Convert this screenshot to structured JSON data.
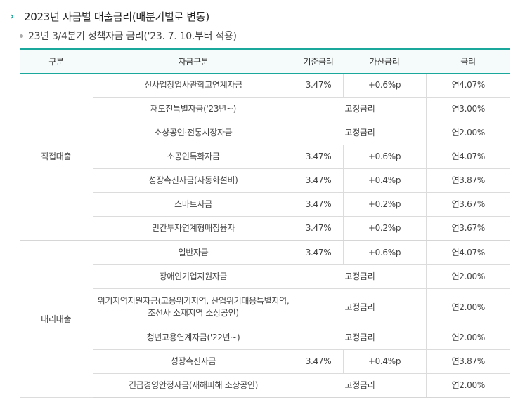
{
  "header": {
    "title": "2023년 자금별 대출금리(매분기별로 변동)",
    "subtitle": "23년 3/4분기 정책자금 금리('23. 7. 10.부터 적용)"
  },
  "colors": {
    "accent": "#1aa89c"
  },
  "table": {
    "columns": [
      "구분",
      "자금구분",
      "기준금리",
      "가산금리",
      "금리"
    ],
    "groups": [
      {
        "label": "직접대출",
        "rows": [
          {
            "fund": "신사업창업사관학교연계자금",
            "base": "3.47%",
            "add": "+0.6%p",
            "rate": "연4.07%"
          },
          {
            "fund": "재도전특별자금('23년~)",
            "fixed": "고정금리",
            "rate": "연3.00%"
          },
          {
            "fund": "소상공인·전통시장자금",
            "fixed": "고정금리",
            "rate": "연2.00%"
          },
          {
            "fund": "소공인특화자금",
            "base": "3.47%",
            "add": "+0.6%p",
            "rate": "연4.07%"
          },
          {
            "fund": "성장촉진자금(자동화설비)",
            "base": "3.47%",
            "add": "+0.4%p",
            "rate": "연3.87%"
          },
          {
            "fund": "스마트자금",
            "base": "3.47%",
            "add": "+0.2%p",
            "rate": "연3.67%"
          },
          {
            "fund": "민간투자연계형매칭융자",
            "base": "3.47%",
            "add": "+0.2%p",
            "rate": "연3.67%"
          }
        ]
      },
      {
        "label": "대리대출",
        "rows": [
          {
            "fund": "일반자금",
            "base": "3.47%",
            "add": "+0.6%p",
            "rate": "연4.07%"
          },
          {
            "fund": "장애인기업지원자금",
            "fixed": "고정금리",
            "rate": "연2.00%"
          },
          {
            "fund": "위기지역지원자금(고용위기지역, 산업위기대응특별지역, 조선사 소재지역 소상공인)",
            "fixed": "고정금리",
            "rate": "연2.00%"
          },
          {
            "fund": "청년고용연계자금('22년~)",
            "fixed": "고정금리",
            "rate": "연2.00%"
          },
          {
            "fund": "성장촉진자금",
            "base": "3.47%",
            "add": "+0.4%p",
            "rate": "연3.87%"
          },
          {
            "fund": "긴급경영안정자금(재해피해 소상공인)",
            "fixed": "고정금리",
            "rate": "연2.00%"
          }
        ]
      }
    ]
  }
}
